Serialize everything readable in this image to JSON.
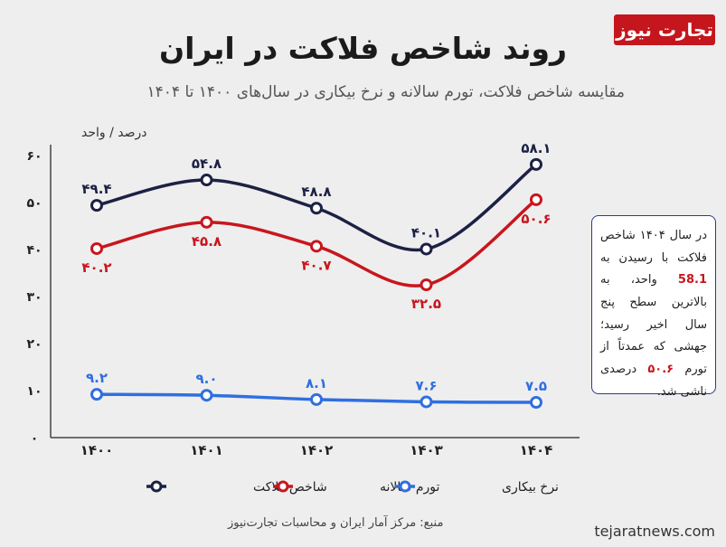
{
  "header": {
    "logo_text": "تجارت نیوز",
    "title": "روند شاخص فلاکت در ایران",
    "subtitle": "مقایسه شاخص فلاکت، تورم سالانه و نرخ بیکاری در سال‌های ۱۴۰۰ تا ۱۴۰۴"
  },
  "colors": {
    "misery": "#1c2144",
    "inflation": "#c8161d",
    "unemployment": "#2f6fe0",
    "logo": "#c4161c"
  },
  "chart_data": {
    "type": "line",
    "ylabel": "درصد / واحد",
    "ylim": [
      0,
      60
    ],
    "yticks": [
      "۰",
      "۱۰",
      "۲۰",
      "۳۰",
      "۴۰",
      "۵۰",
      "۶۰"
    ],
    "categories": [
      "۱۴۰۰",
      "۱۴۰۱",
      "۱۴۰۲",
      "۱۴۰۳",
      "۱۴۰۴"
    ],
    "grid": false,
    "legend_position": "bottom",
    "series": [
      {
        "name": "شاخص فلاکت",
        "values": [
          49.4,
          54.8,
          48.8,
          40.1,
          58.1
        ],
        "labels": [
          "۴۹.۴",
          "۵۴.۸",
          "۴۸.۸",
          "۴۰.۱",
          "۵۸.۱"
        ],
        "label_side": [
          "above",
          "above",
          "above",
          "above",
          "above"
        ]
      },
      {
        "name": "تورم سالانه",
        "values": [
          40.2,
          45.8,
          40.7,
          32.5,
          50.6
        ],
        "labels": [
          "۴۰.۲",
          "۴۵.۸",
          "۴۰.۷",
          "۳۲.۵",
          "۵۰.۶"
        ],
        "label_side": [
          "below",
          "below",
          "below",
          "below",
          "below"
        ]
      },
      {
        "name": "نرخ بیکاری",
        "values": [
          9.2,
          9.0,
          8.1,
          7.6,
          7.5
        ],
        "labels": [
          "۹.۲",
          "۹.۰",
          "۸.۱",
          "۷.۶",
          "۷.۵"
        ],
        "label_side": [
          "above",
          "above",
          "above",
          "above",
          "above"
        ]
      }
    ]
  },
  "note": {
    "part1": "در سال ۱۴۰۴ شاخص فلاکت با رسیدن به ",
    "value1": "58.1",
    "part2": " واحد، به بالاترین سطح پنج سال اخیر رسید؛ جهشی که عمدتاً از تورم ",
    "value2": "۵۰.۶",
    "part3": " درصدی ناشی شد."
  },
  "footer": {
    "source": "منبع: مرکز آمار ایران و محاسبات تجارت‌نیوز",
    "website": "tejaratnews.com"
  }
}
